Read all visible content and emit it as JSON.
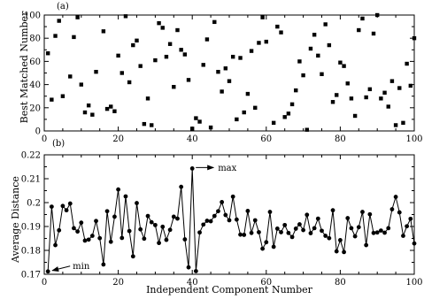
{
  "chart_data": [
    {
      "panel_label": "(a)",
      "type": "scatter",
      "title": "",
      "ylabel": "Best Matched Number",
      "xlabel": "",
      "xlim": [
        0,
        100
      ],
      "ylim": [
        0,
        100
      ],
      "xticks": [
        0,
        20,
        40,
        60,
        80,
        100
      ],
      "yticks": [
        0,
        20,
        40,
        60,
        80,
        100
      ],
      "grid": false,
      "marker": "square",
      "series": [
        {
          "x": [
            1,
            2,
            3,
            4,
            5,
            7,
            8,
            9,
            10,
            11,
            12,
            13,
            14,
            16,
            17,
            18,
            19,
            20,
            21,
            22,
            23,
            24,
            25,
            26,
            27,
            28,
            29,
            30,
            31,
            32,
            33,
            34,
            35,
            36,
            37,
            38,
            39,
            40,
            41,
            42,
            43,
            44,
            45,
            46,
            47,
            48,
            49,
            50,
            51,
            52,
            53,
            54,
            55,
            56,
            57,
            58,
            59,
            60,
            62,
            63,
            64,
            65,
            66,
            67,
            68,
            69,
            70,
            71,
            72,
            73,
            74,
            75,
            76,
            77,
            78,
            79,
            80,
            81,
            82,
            83,
            84,
            85,
            86,
            87,
            88,
            89,
            90,
            91,
            92,
            93,
            94,
            95,
            96,
            97,
            98,
            99,
            100
          ],
          "y": [
            67,
            27,
            82,
            95,
            30,
            47,
            81,
            98,
            40,
            16,
            22,
            14,
            51,
            86,
            19,
            21,
            17,
            65,
            50,
            99,
            42,
            74,
            78,
            56,
            6,
            28,
            5,
            61,
            93,
            89,
            64,
            75,
            38,
            87,
            70,
            66,
            44,
            2,
            11,
            8,
            57,
            79,
            3,
            94,
            51,
            34,
            54,
            43,
            64,
            10,
            63,
            16,
            32,
            69,
            20,
            76,
            98,
            77,
            7,
            90,
            85,
            12,
            15,
            23,
            35,
            60,
            48,
            1,
            71,
            83,
            65,
            49,
            92,
            74,
            25,
            31,
            59,
            56,
            41,
            28,
            13,
            87,
            97,
            29,
            36,
            84,
            100,
            28,
            33,
            21,
            43,
            5,
            37,
            7,
            58,
            39,
            80
          ]
        }
      ]
    },
    {
      "panel_label": "(b)",
      "type": "line",
      "title": "",
      "ylabel": "Average Distance",
      "xlabel": "Independent Component Number",
      "xlim": [
        0,
        100
      ],
      "ylim": [
        0.17,
        0.22
      ],
      "xticks": [
        0,
        20,
        40,
        60,
        80,
        100
      ],
      "yticks": [
        0.17,
        0.18,
        0.19,
        0.2,
        0.21,
        0.22
      ],
      "ytick_labels": [
        "0.17",
        "0.18",
        "0.19",
        "0.2",
        "0.21",
        "0.22"
      ],
      "grid": false,
      "marker": "circle",
      "series": [
        {
          "x": [
            1,
            2,
            3,
            4,
            5,
            6,
            7,
            8,
            9,
            10,
            11,
            12,
            13,
            14,
            15,
            16,
            17,
            18,
            19,
            20,
            21,
            22,
            23,
            24,
            25,
            26,
            27,
            28,
            29,
            30,
            31,
            32,
            33,
            34,
            35,
            36,
            37,
            38,
            39,
            40,
            41,
            42,
            43,
            44,
            45,
            46,
            47,
            48,
            49,
            50,
            51,
            52,
            53,
            54,
            55,
            56,
            57,
            58,
            59,
            60,
            61,
            62,
            63,
            64,
            65,
            66,
            67,
            68,
            69,
            70,
            71,
            72,
            73,
            74,
            75,
            76,
            77,
            78,
            79,
            80,
            81,
            82,
            83,
            84,
            85,
            86,
            87,
            88,
            89,
            90,
            91,
            92,
            93,
            94,
            95,
            96,
            97,
            98,
            99,
            100
          ],
          "y": [
            0.1712,
            0.1983,
            0.1822,
            0.1884,
            0.1986,
            0.1968,
            0.1996,
            0.1893,
            0.1879,
            0.1916,
            0.1841,
            0.1845,
            0.1861,
            0.1923,
            0.1851,
            0.1741,
            0.1964,
            0.1836,
            0.1941,
            0.2055,
            0.1852,
            0.2026,
            0.1881,
            0.1775,
            0.1998,
            0.1888,
            0.1849,
            0.1944,
            0.1918,
            0.1906,
            0.1831,
            0.1899,
            0.1844,
            0.1886,
            0.1941,
            0.1933,
            0.2066,
            0.1846,
            0.1729,
            0.2143,
            0.1713,
            0.1875,
            0.1908,
            0.1924,
            0.1922,
            0.1944,
            0.1964,
            0.2002,
            0.1948,
            0.1926,
            0.2025,
            0.1929,
            0.1866,
            0.1865,
            0.1965,
            0.1873,
            0.1926,
            0.1876,
            0.1807,
            0.1834,
            0.1961,
            0.1815,
            0.1891,
            0.1876,
            0.1906,
            0.1873,
            0.1856,
            0.1891,
            0.1909,
            0.1885,
            0.1949,
            0.1872,
            0.1893,
            0.1933,
            0.1882,
            0.1861,
            0.1851,
            0.1968,
            0.1796,
            0.1843,
            0.1793,
            0.1935,
            0.1893,
            0.1859,
            0.1897,
            0.1961,
            0.1822,
            0.1951,
            0.1873,
            0.1875,
            0.1883,
            0.1874,
            0.1893,
            0.1972,
            0.2024,
            0.1959,
            0.1861,
            0.1901,
            0.1932,
            0.1829
          ]
        }
      ],
      "annotations": [
        {
          "text": "max",
          "x": 40,
          "y": 0.2143
        },
        {
          "text": "min",
          "x": 1,
          "y": 0.1712
        }
      ]
    }
  ]
}
